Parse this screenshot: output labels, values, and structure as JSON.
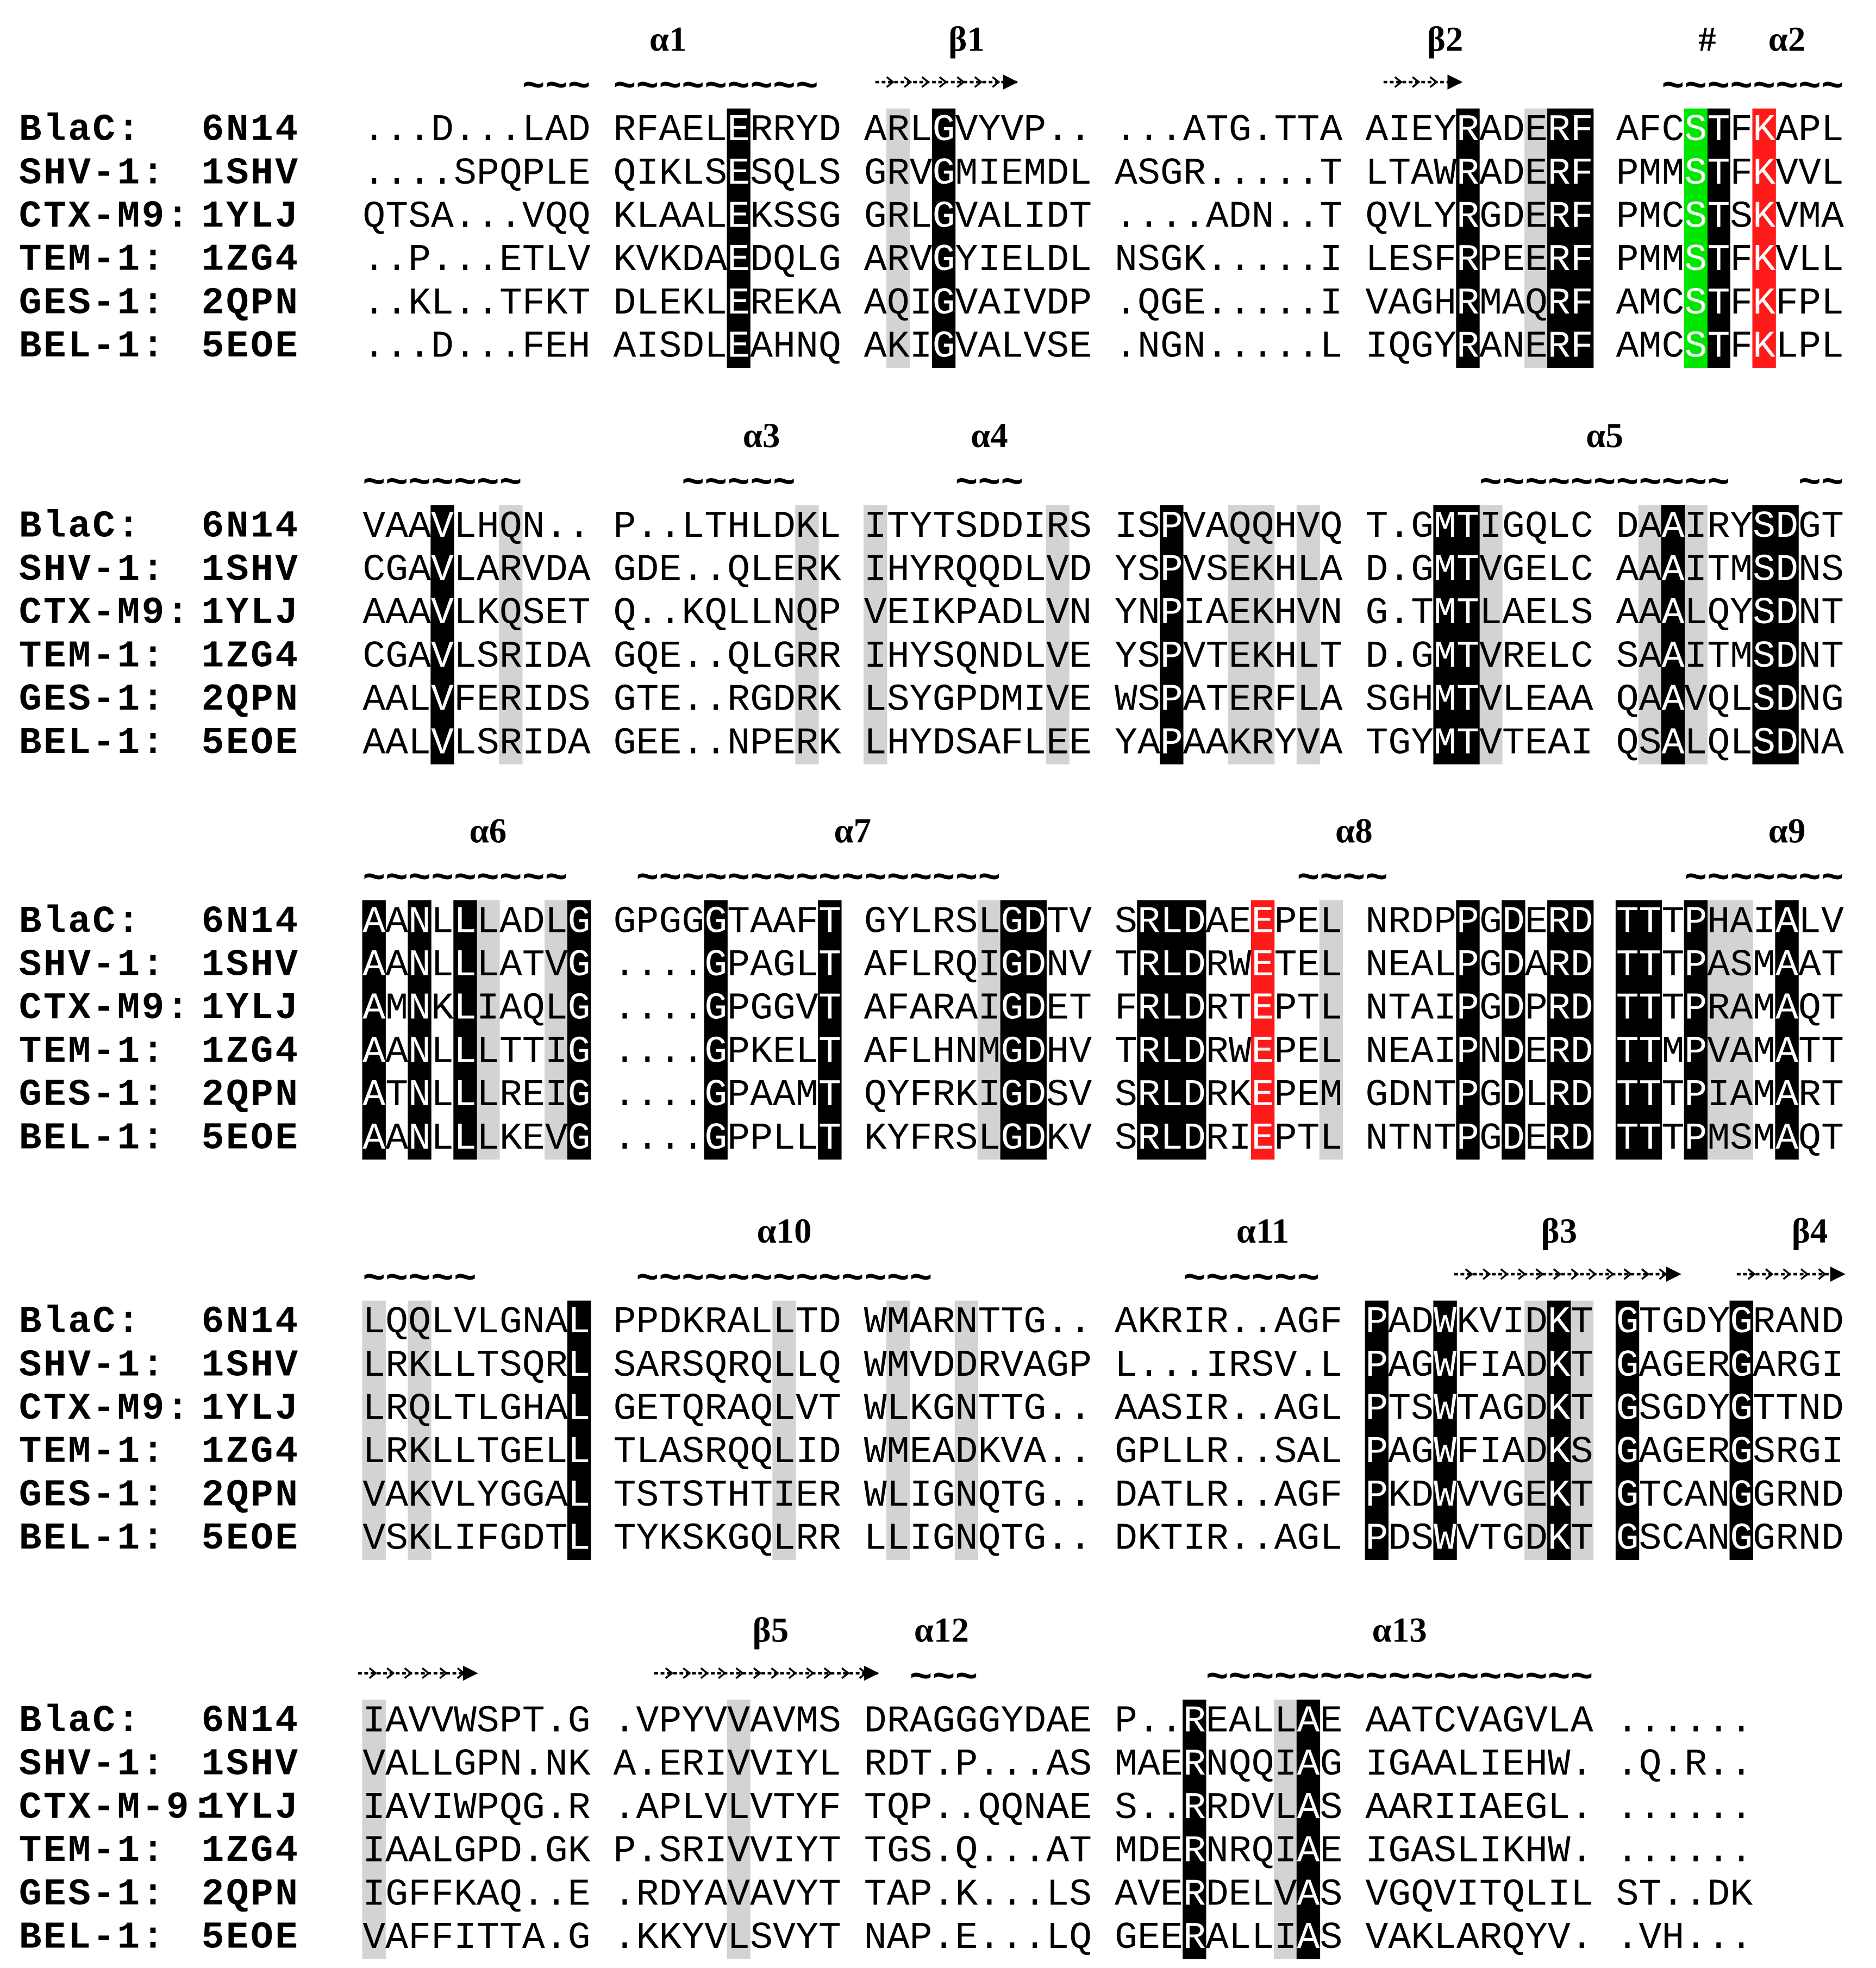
{
  "blocks": [
    {
      "labels": [
        "α1",
        "β1",
        "β2",
        "#",
        "α2"
      ],
      "tildes": [
        "~~~",
        "~~~~~~~~~",
        "~~~~~~~~"
      ],
      "rows": [
        {
          "name": "BlaC:",
          "pdb": "6N14",
          "groups": [
            "...D...LAD",
            "RFAELERRYD",
            "ARLGVYVP..",
            "...ATG.TTA",
            "AIEYRADERF",
            "AFCSTFKAPL"
          ]
        },
        {
          "name": "SHV-1:",
          "pdb": "1SHV",
          "groups": [
            "....SPQPLE",
            "QIKLSESQLS",
            "GRVGMIEMDL",
            "ASGR.....T",
            "LTAWRADERF",
            "PMMSTFKVVL"
          ]
        },
        {
          "name": "CTX-M9:",
          "pdb": "1YLJ",
          "groups": [
            "QTSA...VQQ",
            "KLAALEKSSG",
            "GRLGVALIDT",
            "....ADN..T",
            "QVLYRGDERF",
            "PMCSTSKVMA"
          ]
        },
        {
          "name": "TEM-1:",
          "pdb": "1ZG4",
          "groups": [
            "..P...ETLV",
            "KVKDAEDQLG",
            "ARVGYIELDL",
            "NSGK.....I",
            "LESFRPEERF",
            "PMMSTFKVLL"
          ]
        },
        {
          "name": "GES-1:",
          "pdb": "2QPN",
          "groups": [
            "..KL..TFKT",
            "DLEKLEREKA",
            "AQIGVAIVDP",
            ".QGE.....I",
            "VAGHRMAQRF",
            "AMCSTFKFPL"
          ]
        },
        {
          "name": "BEL-1:",
          "pdb": "5EOE",
          "groups": [
            "...D...FEH",
            "AISDLEAHNQ",
            "AKIGVALVSE",
            ".NGN.....L",
            "IQGYRANERF",
            "AMCSTFKLPL"
          ]
        }
      ]
    },
    {
      "labels": [
        "α3",
        "α4",
        "α5"
      ],
      "tildes": [
        "~~~~~~~",
        "~~~~~",
        "~~~",
        "~~~~~~~~~~~",
        "~~"
      ],
      "rows": [
        {
          "name": "BlaC:",
          "pdb": "6N14",
          "groups": [
            "VAAVLHQN..",
            "P..LTHLDKL",
            "ITYTSDDIRS",
            "ISPVAQQHVQ",
            "T.GMTIGQLC",
            "DAAIRYSDGT"
          ]
        },
        {
          "name": "SHV-1:",
          "pdb": "1SHV",
          "groups": [
            "CGAVLARVDA",
            "GDE..QLERK",
            "IHYRQQDLVD",
            "YSPVSEKHLA",
            "D.GMTVGELC",
            "AAAITMSDNS"
          ]
        },
        {
          "name": "CTX-M9:",
          "pdb": "1YLJ",
          "groups": [
            "AAAVLKQSET",
            "Q..KQLLNQP",
            "VEIKPADLVN",
            "YNPIAEKHVN",
            "G.TMTLAELS",
            "AAALQYSDNT"
          ]
        },
        {
          "name": "TEM-1:",
          "pdb": "1ZG4",
          "groups": [
            "CGAVLSRIDA",
            "GQE..QLGRR",
            "IHYSQNDLVE",
            "YSPVTEKHLT",
            "D.GMTVRELC",
            "SAAITMSDNT"
          ]
        },
        {
          "name": "GES-1:",
          "pdb": "2QPN",
          "groups": [
            "AALVFERIDS",
            "GTE..RGDRK",
            "LSYGPDMIVE",
            "WSPATERFLA",
            "SGHMTVLEAA",
            "QAAVQLSDNG"
          ]
        },
        {
          "name": "BEL-1:",
          "pdb": "5EOE",
          "groups": [
            "AALVLSRIDA",
            "GEE..NPERK",
            "LHYDSAFLEE",
            "YAPAAKRYVA",
            "TGYMTVTEAI",
            "QSALQLSDNA"
          ]
        }
      ]
    },
    {
      "labels": [
        "α6",
        "α7",
        "α8",
        "α9"
      ],
      "tildes": [
        "~~~~~~~~~",
        "~~~~~~~~~~~~~~~~",
        "~~~~",
        "~~~~~~~"
      ],
      "rows": [
        {
          "name": "BlaC:",
          "pdb": "6N14",
          "groups": [
            "AANLLLADLG",
            "GPGGGTAAFT",
            "GYLRSLGDTV",
            "SRLDAEEPEL",
            "NRDPPGDERD",
            "TTTPHAIALV"
          ]
        },
        {
          "name": "SHV-1:",
          "pdb": "1SHV",
          "groups": [
            "AANLLLATVG",
            "....GPAGLT",
            "AFLRQIGDNV",
            "TRLDRWETEL",
            "NEALPGDARD",
            "TTTPASMAAT"
          ]
        },
        {
          "name": "CTX-M9:",
          "pdb": "1YLJ",
          "groups": [
            "AMNKLIAQLG",
            "....GPGGVT",
            "AFARAIGDET",
            "FRLDRTEPTL",
            "NTAIPGDPRD",
            "TTTPRAMAQT"
          ]
        },
        {
          "name": "TEM-1:",
          "pdb": "1ZG4",
          "groups": [
            "AANLLLTTIG",
            "....GPKELT",
            "AFLHNMGDHV",
            "TRLDRWEPEL",
            "NEAIPNDERD",
            "TTMPVAMATT"
          ]
        },
        {
          "name": "GES-1:",
          "pdb": "2QPN",
          "groups": [
            "ATNLLLREIG",
            "....GPAAMT",
            "QYFRKIGDSV",
            "SRLDRKEPEM",
            "GDNTPGDLRD",
            "TTTPIAMART"
          ]
        },
        {
          "name": "BEL-1:",
          "pdb": "5EOE",
          "groups": [
            "AANLLLKEVG",
            "....GPPLLT",
            "KYFRSLGDKV",
            "SRLDRIEPTL",
            "NTNTPGDERD",
            "TTTPMSMAQT"
          ]
        }
      ]
    },
    {
      "labels": [
        "α10",
        "α11",
        "β3",
        "β4"
      ],
      "tildes": [
        "~~~~~",
        "~~~~~~~~~~~~~",
        "~~~~~~"
      ],
      "rows": [
        {
          "name": "BlaC:",
          "pdb": "6N14",
          "groups": [
            "LQQLVLGNAL",
            "PPDKRALLTD",
            "WMARNTTG..",
            "AKRIR..AGF",
            "PADWKVIDKT",
            "GTGDYGRAND"
          ]
        },
        {
          "name": "SHV-1:",
          "pdb": "1SHV",
          "groups": [
            "LRKLLTSQRL",
            "SARSQRQLLQ",
            "WMVDDRVAGP",
            "L...IRSV.L",
            "PAGWFIADKT",
            "GAGERGARGI"
          ]
        },
        {
          "name": "CTX-M9:",
          "pdb": "1YLJ",
          "groups": [
            "LRQLTLGHAL",
            "GETQRAQLVT",
            "WLKGNTTG..",
            "AASIR..AGL",
            "PTSWTAGDKT",
            "GSGDYGTTND"
          ]
        },
        {
          "name": "TEM-1:",
          "pdb": "1ZG4",
          "groups": [
            "LRKLLTGELL",
            "TLASRQQLID",
            "WMEADKVA..",
            "GPLLR..SAL",
            "PAGWFIADKS",
            "GAGERGSRGI"
          ]
        },
        {
          "name": "GES-1:",
          "pdb": "2QPN",
          "groups": [
            "VAKVLYGGAL",
            "TSTSTHTIER",
            "WLIGNQTG..",
            "DATLR..AGF",
            "PKDWVVGEKT",
            "GTCANGGRND"
          ]
        },
        {
          "name": "BEL-1:",
          "pdb": "5EOE",
          "groups": [
            "VSKLIFGDTL",
            "TYKSKGQLRR",
            "LLIGNQTG..",
            "DKTIR..AGL",
            "PDSWVTGDKT",
            "GSCANGGRND"
          ]
        }
      ]
    },
    {
      "labels": [
        "β5",
        "α12",
        "α13"
      ],
      "tildes": [
        "~~~",
        "~~~~~~~~~~~~~~~~~"
      ],
      "rows": [
        {
          "name": "BlaC:",
          "pdb": "6N14",
          "groups": [
            "IAVVWSPT.G",
            ".VPYVVAVMS",
            "DRAGGGYDAE",
            "P..REALLAE",
            "AATCVAGVLA",
            "......"
          ]
        },
        {
          "name": "SHV-1:",
          "pdb": "1SHV",
          "groups": [
            "VALLGPN.NK",
            "A.ERIVVIYL",
            "RDT.P...AS",
            "MAERNQQIAG",
            "IGAALIEHW.",
            ".Q.R.."
          ]
        },
        {
          "name": "CTX-M-9:",
          "pdb": "1YLJ",
          "groups": [
            "IAVIWPQG.R",
            ".APLVLVTYF",
            "TQP..QQNAE",
            "S..RRDVLAS",
            "AARIIAEGL.",
            "......"
          ]
        },
        {
          "name": "TEM-1:",
          "pdb": "1ZG4",
          "groups": [
            "IAALGPD.GK",
            "P.SRIVVIYT",
            "TGS.Q...AT",
            "MDERNRQIAE",
            "IGASLIKHW.",
            "......"
          ]
        },
        {
          "name": "GES-1:",
          "pdb": "2QPN",
          "groups": [
            "IGFFKAQ..E",
            ".RDYAVAVYT",
            "TAP.K...LS",
            "AVERDELVAS",
            "VGQVITQLIL",
            "ST..DK"
          ]
        },
        {
          "name": "BEL-1:",
          "pdb": "5EOE",
          "groups": [
            "VAFFITTA.G",
            ".KKYVLSVYT",
            "NAP.E...LQ",
            "GEERALLIAS",
            "VAKLARQYV.",
            ".VH..."
          ]
        }
      ]
    }
  ]
}
